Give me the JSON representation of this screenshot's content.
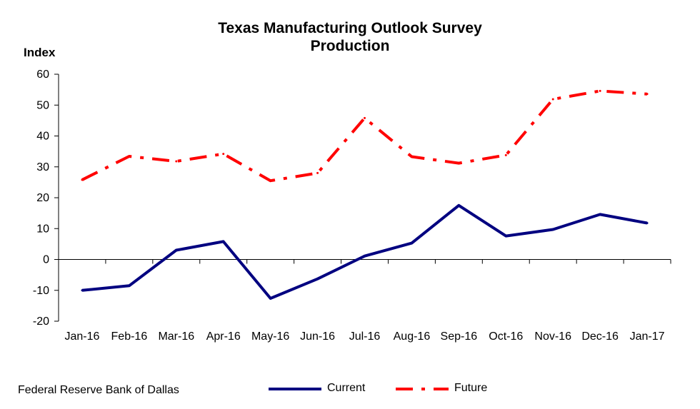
{
  "chart_data": {
    "type": "line",
    "title": "Texas Manufacturing Outlook Survey",
    "subtitle": "Production",
    "ylabel": "Index",
    "xlabel": "",
    "ylim": [
      -20,
      60
    ],
    "yticks": [
      60,
      50,
      40,
      30,
      20,
      10,
      0,
      -10,
      -20
    ],
    "categories": [
      "Jan-16",
      "Feb-16",
      "Mar-16",
      "Apr-16",
      "May-16",
      "Jun-16",
      "Jul-16",
      "Aug-16",
      "Sep-16",
      "Oct-16",
      "Nov-16",
      "Dec-16",
      "Jan-17"
    ],
    "series": [
      {
        "name": "Current",
        "color": "#000080",
        "style": "solid",
        "values": [
          -10.0,
          -8.5,
          3.0,
          5.8,
          -12.6,
          -6.3,
          1.1,
          5.3,
          17.5,
          7.6,
          9.7,
          14.6,
          11.8
        ]
      },
      {
        "name": "Future",
        "color": "#ff0000",
        "style": "dash-dot",
        "values": [
          25.8,
          33.4,
          31.8,
          34.2,
          25.5,
          28.0,
          45.8,
          33.3,
          31.2,
          33.8,
          51.9,
          54.6,
          53.6
        ]
      }
    ],
    "grid": false,
    "legend": "bottom-center"
  },
  "source": "Federal Reserve Bank of Dallas"
}
